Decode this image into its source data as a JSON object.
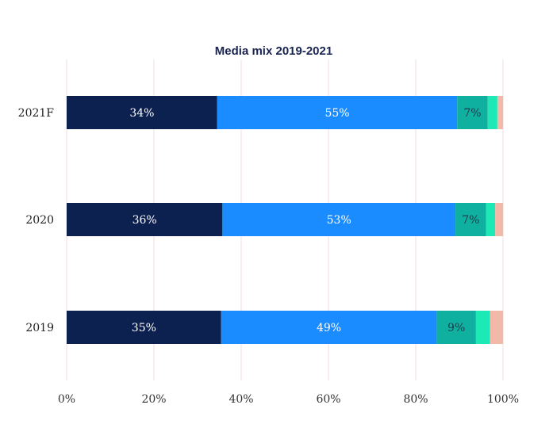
{
  "chart_data": {
    "type": "bar",
    "orientation": "horizontal",
    "stacked": true,
    "title": "Media mix 2019-2021",
    "categories": [
      "2021F",
      "2020",
      "2019"
    ],
    "xlim": [
      0,
      100
    ],
    "x_ticks": [
      "0%",
      "20%",
      "40%",
      "60%",
      "80%",
      "100%"
    ],
    "grid": true,
    "legend": "none",
    "series": [
      {
        "values": [
          34.5,
          35.7,
          35.4
        ],
        "labels": [
          "34%",
          "36%",
          "35%"
        ],
        "color": "#0d2150",
        "label_color": "#ffffff"
      },
      {
        "values": [
          55.0,
          53.4,
          49.4
        ],
        "labels": [
          "55%",
          "53%",
          "49%"
        ],
        "color": "#1a8cff",
        "label_color": "#ffffff"
      },
      {
        "values": [
          7.0,
          7.0,
          9.0
        ],
        "labels": [
          "7%",
          "7%",
          "9%"
        ],
        "color": "#0fb0a0",
        "label_color": "#1e3a4a"
      },
      {
        "values": [
          2.2,
          2.1,
          3.2
        ],
        "labels": [
          "",
          "",
          ""
        ],
        "color": "#1de9b6",
        "label_color": "#1e3a4a"
      },
      {
        "values": [
          1.3,
          1.8,
          3.0
        ],
        "labels": [
          "",
          "",
          ""
        ],
        "color": "#f2b8a8",
        "label_color": "#1e3a4a"
      }
    ]
  }
}
